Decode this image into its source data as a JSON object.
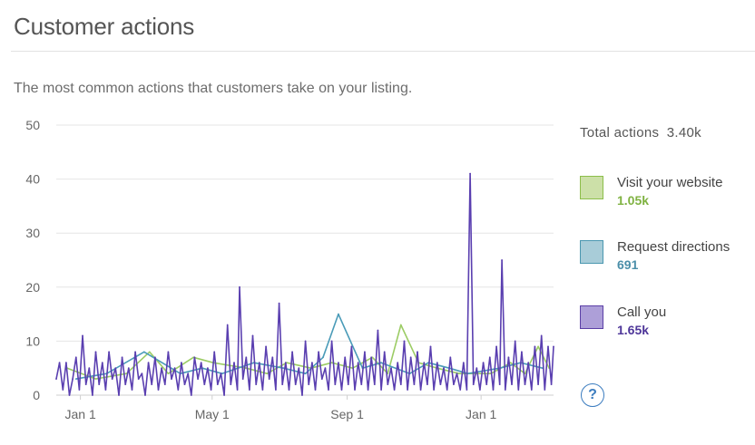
{
  "header": {
    "title": "Customer actions",
    "subtitle": "The most common actions that customers take on your listing."
  },
  "summary": {
    "total_label": "Total actions",
    "total_value": "3.40k"
  },
  "legend": [
    {
      "label": "Visit your website",
      "value": "1.05k",
      "fill": "#cce0a8",
      "stroke": "#8cbe4a",
      "text_color": "#7fb241"
    },
    {
      "label": "Request directions",
      "value": "691",
      "fill": "#a8ccd8",
      "stroke": "#4b97b0",
      "text_color": "#4b8fa9"
    },
    {
      "label": "Call you",
      "value": "1.65k",
      "fill": "#ad9fd8",
      "stroke": "#5b3fa6",
      "text_color": "#4e3699"
    }
  ],
  "help": {
    "icon": "question-circle-icon",
    "glyph": "?"
  },
  "chart_data": {
    "type": "line",
    "ylim": [
      0,
      50
    ],
    "yticks": [
      0,
      10,
      20,
      30,
      40,
      50
    ],
    "xlim": [
      "2017-12-10",
      "2019-03-08"
    ],
    "xticks": [
      {
        "label": "Jan 1",
        "date": "2018-01-01"
      },
      {
        "label": "May 1",
        "date": "2018-05-01"
      },
      {
        "label": "Sep 1",
        "date": "2018-09-01"
      },
      {
        "label": "Jan 1",
        "date": "2019-01-01"
      }
    ],
    "series": [
      {
        "name": "Visit your website",
        "color": "#9ccc65",
        "points": [
          [
            "2017-12-20",
            5
          ],
          [
            "2018-01-15",
            3
          ],
          [
            "2018-02-12",
            4
          ],
          [
            "2018-03-05",
            8
          ],
          [
            "2018-03-22",
            4
          ],
          [
            "2018-04-14",
            7
          ],
          [
            "2018-05-02",
            6
          ],
          [
            "2018-06-01",
            5
          ],
          [
            "2018-06-20",
            4
          ],
          [
            "2018-07-08",
            6
          ],
          [
            "2018-07-30",
            5
          ],
          [
            "2018-08-18",
            6
          ],
          [
            "2018-09-06",
            5
          ],
          [
            "2018-09-24",
            7
          ],
          [
            "2018-10-08",
            4
          ],
          [
            "2018-10-20",
            13
          ],
          [
            "2018-11-05",
            6
          ],
          [
            "2018-11-22",
            5
          ],
          [
            "2018-12-12",
            4
          ],
          [
            "2019-01-10",
            4
          ],
          [
            "2019-01-28",
            6
          ],
          [
            "2019-02-10",
            4
          ],
          [
            "2019-02-22",
            9
          ],
          [
            "2019-03-04",
            5
          ]
        ]
      },
      {
        "name": "Request directions",
        "color": "#4a9bb8",
        "points": [
          [
            "2017-12-28",
            3
          ],
          [
            "2018-01-25",
            4
          ],
          [
            "2018-02-28",
            8
          ],
          [
            "2018-04-02",
            4
          ],
          [
            "2018-04-22",
            5
          ],
          [
            "2018-05-10",
            4
          ],
          [
            "2018-06-08",
            6
          ],
          [
            "2018-07-05",
            5
          ],
          [
            "2018-07-25",
            4
          ],
          [
            "2018-08-10",
            7
          ],
          [
            "2018-08-24",
            15
          ],
          [
            "2018-09-15",
            5
          ],
          [
            "2018-10-02",
            6
          ],
          [
            "2018-10-28",
            4
          ],
          [
            "2018-11-14",
            6
          ],
          [
            "2018-12-03",
            5
          ],
          [
            "2018-12-20",
            4
          ],
          [
            "2019-01-18",
            5
          ],
          [
            "2019-02-06",
            6
          ],
          [
            "2019-02-26",
            5
          ]
        ]
      },
      {
        "name": "Call you",
        "color": "#5a3fb0",
        "points": [
          [
            "2017-12-10",
            3
          ],
          [
            "2017-12-13",
            6
          ],
          [
            "2017-12-16",
            1
          ],
          [
            "2017-12-19",
            6
          ],
          [
            "2017-12-22",
            0
          ],
          [
            "2017-12-25",
            3
          ],
          [
            "2017-12-28",
            7
          ],
          [
            "2017-12-31",
            1
          ],
          [
            "2018-01-03",
            11
          ],
          [
            "2018-01-06",
            2
          ],
          [
            "2018-01-09",
            5
          ],
          [
            "2018-01-12",
            0
          ],
          [
            "2018-01-15",
            8
          ],
          [
            "2018-01-18",
            2
          ],
          [
            "2018-01-21",
            6
          ],
          [
            "2018-01-24",
            1
          ],
          [
            "2018-01-27",
            8
          ],
          [
            "2018-01-30",
            3
          ],
          [
            "2018-02-02",
            5
          ],
          [
            "2018-02-05",
            0
          ],
          [
            "2018-02-08",
            7
          ],
          [
            "2018-02-11",
            2
          ],
          [
            "2018-02-14",
            5
          ],
          [
            "2018-02-17",
            1
          ],
          [
            "2018-02-20",
            8
          ],
          [
            "2018-02-23",
            3
          ],
          [
            "2018-02-26",
            4
          ],
          [
            "2018-03-01",
            0
          ],
          [
            "2018-03-04",
            6
          ],
          [
            "2018-03-07",
            2
          ],
          [
            "2018-03-10",
            7
          ],
          [
            "2018-03-13",
            1
          ],
          [
            "2018-03-16",
            5
          ],
          [
            "2018-03-19",
            2
          ],
          [
            "2018-03-22",
            8
          ],
          [
            "2018-03-25",
            3
          ],
          [
            "2018-03-28",
            5
          ],
          [
            "2018-03-31",
            1
          ],
          [
            "2018-04-03",
            6
          ],
          [
            "2018-04-06",
            2
          ],
          [
            "2018-04-09",
            4
          ],
          [
            "2018-04-12",
            0
          ],
          [
            "2018-04-15",
            7
          ],
          [
            "2018-04-18",
            3
          ],
          [
            "2018-04-21",
            6
          ],
          [
            "2018-04-24",
            2
          ],
          [
            "2018-04-27",
            5
          ],
          [
            "2018-04-30",
            1
          ],
          [
            "2018-05-03",
            8
          ],
          [
            "2018-05-06",
            2
          ],
          [
            "2018-05-09",
            4
          ],
          [
            "2018-05-12",
            0
          ],
          [
            "2018-05-15",
            13
          ],
          [
            "2018-05-18",
            2
          ],
          [
            "2018-05-21",
            6
          ],
          [
            "2018-05-24",
            1
          ],
          [
            "2018-05-26",
            20
          ],
          [
            "2018-05-29",
            3
          ],
          [
            "2018-06-01",
            7
          ],
          [
            "2018-06-04",
            1
          ],
          [
            "2018-06-07",
            11
          ],
          [
            "2018-06-10",
            2
          ],
          [
            "2018-06-13",
            6
          ],
          [
            "2018-06-16",
            1
          ],
          [
            "2018-06-19",
            9
          ],
          [
            "2018-06-22",
            3
          ],
          [
            "2018-06-25",
            7
          ],
          [
            "2018-06-28",
            1
          ],
          [
            "2018-07-01",
            17
          ],
          [
            "2018-07-04",
            2
          ],
          [
            "2018-07-07",
            6
          ],
          [
            "2018-07-10",
            1
          ],
          [
            "2018-07-13",
            8
          ],
          [
            "2018-07-16",
            2
          ],
          [
            "2018-07-19",
            5
          ],
          [
            "2018-07-22",
            0
          ],
          [
            "2018-07-25",
            10
          ],
          [
            "2018-07-28",
            2
          ],
          [
            "2018-07-31",
            6
          ],
          [
            "2018-08-03",
            1
          ],
          [
            "2018-08-06",
            8
          ],
          [
            "2018-08-09",
            3
          ],
          [
            "2018-08-12",
            5
          ],
          [
            "2018-08-15",
            1
          ],
          [
            "2018-08-18",
            10
          ],
          [
            "2018-08-21",
            2
          ],
          [
            "2018-08-24",
            6
          ],
          [
            "2018-08-27",
            1
          ],
          [
            "2018-08-30",
            7
          ],
          [
            "2018-09-02",
            2
          ],
          [
            "2018-09-05",
            9
          ],
          [
            "2018-09-08",
            1
          ],
          [
            "2018-09-11",
            6
          ],
          [
            "2018-09-14",
            2
          ],
          [
            "2018-09-17",
            8
          ],
          [
            "2018-09-20",
            1
          ],
          [
            "2018-09-23",
            7
          ],
          [
            "2018-09-26",
            2
          ],
          [
            "2018-09-29",
            12
          ],
          [
            "2018-10-02",
            1
          ],
          [
            "2018-10-05",
            8
          ],
          [
            "2018-10-08",
            2
          ],
          [
            "2018-10-11",
            5
          ],
          [
            "2018-10-14",
            1
          ],
          [
            "2018-10-17",
            6
          ],
          [
            "2018-10-20",
            2
          ],
          [
            "2018-10-23",
            10
          ],
          [
            "2018-10-26",
            1
          ],
          [
            "2018-10-29",
            7
          ],
          [
            "2018-11-01",
            2
          ],
          [
            "2018-11-04",
            8
          ],
          [
            "2018-11-07",
            1
          ],
          [
            "2018-11-10",
            6
          ],
          [
            "2018-11-13",
            2
          ],
          [
            "2018-11-16",
            9
          ],
          [
            "2018-11-19",
            1
          ],
          [
            "2018-11-22",
            6
          ],
          [
            "2018-11-25",
            2
          ],
          [
            "2018-11-28",
            5
          ],
          [
            "2018-12-01",
            1
          ],
          [
            "2018-12-04",
            7
          ],
          [
            "2018-12-07",
            2
          ],
          [
            "2018-12-10",
            4
          ],
          [
            "2018-12-13",
            1
          ],
          [
            "2018-12-16",
            6
          ],
          [
            "2018-12-19",
            1
          ],
          [
            "2018-12-22",
            41
          ],
          [
            "2018-12-25",
            2
          ],
          [
            "2018-12-28",
            5
          ],
          [
            "2018-12-31",
            1
          ],
          [
            "2019-01-03",
            6
          ],
          [
            "2019-01-06",
            2
          ],
          [
            "2019-01-09",
            7
          ],
          [
            "2019-01-12",
            1
          ],
          [
            "2019-01-15",
            9
          ],
          [
            "2019-01-18",
            2
          ],
          [
            "2019-01-20",
            25
          ],
          [
            "2019-01-23",
            1
          ],
          [
            "2019-01-26",
            7
          ],
          [
            "2019-01-29",
            2
          ],
          [
            "2019-02-01",
            10
          ],
          [
            "2019-02-04",
            1
          ],
          [
            "2019-02-07",
            8
          ],
          [
            "2019-02-10",
            2
          ],
          [
            "2019-02-13",
            6
          ],
          [
            "2019-02-16",
            1
          ],
          [
            "2019-02-19",
            9
          ],
          [
            "2019-02-22",
            2
          ],
          [
            "2019-02-25",
            11
          ],
          [
            "2019-02-28",
            1
          ],
          [
            "2019-03-03",
            9
          ],
          [
            "2019-03-06",
            2
          ],
          [
            "2019-03-08",
            9
          ]
        ]
      }
    ]
  }
}
